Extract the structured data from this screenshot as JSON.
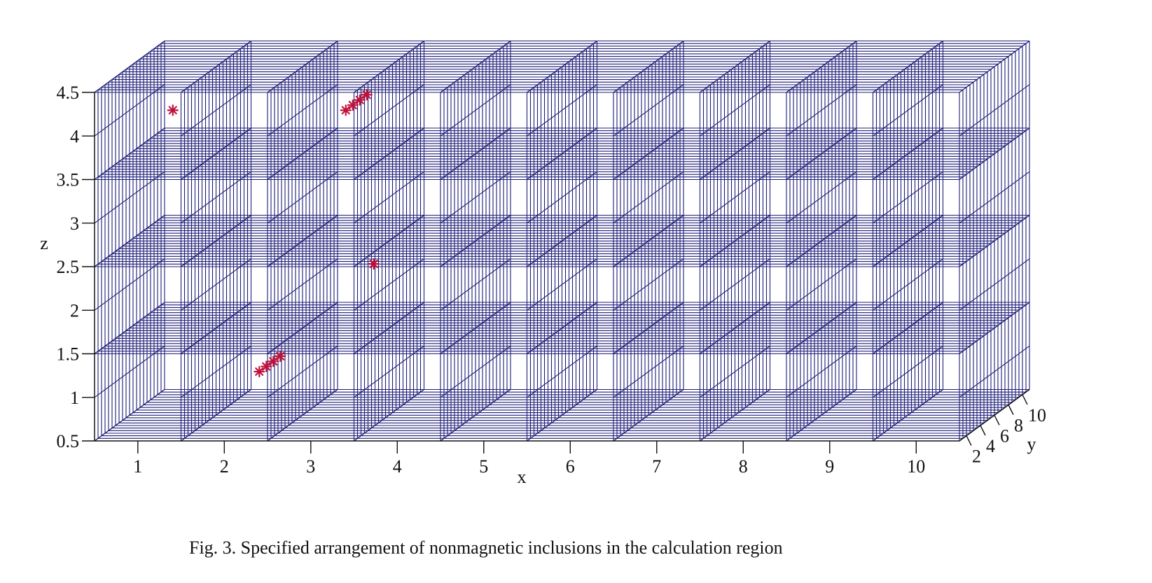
{
  "caption": "Fig. 3. Specified arrangement of nonmagnetic inclusions in the calculation region",
  "colors": {
    "grid": "#1c1c78",
    "marker": "#c0103a",
    "text": "#111111"
  },
  "chart_data": {
    "type": "scatter",
    "projection": "3d-oblique",
    "xlabel": "x",
    "ylabel": "y",
    "zlabel": "z",
    "xlim": [
      0.5,
      10.5
    ],
    "ylim": [
      1,
      11
    ],
    "zlim": [
      0.5,
      4.5
    ],
    "xticks": [
      "1",
      "2",
      "3",
      "4",
      "5",
      "6",
      "7",
      "8",
      "9",
      "10"
    ],
    "yticks": [
      "2",
      "4",
      "6",
      "8",
      "10"
    ],
    "zticks": [
      "0.5",
      "1",
      "1.5",
      "2",
      "2.5",
      "3",
      "3.5",
      "4",
      "4.5"
    ],
    "grid": true,
    "series": [
      {
        "marker": "asterisk",
        "points": [
          {
            "x": 1,
            "y": 6,
            "z": 4
          },
          {
            "x": 3,
            "y": 6,
            "z": 4
          },
          {
            "x": 3,
            "y": 7,
            "z": 4
          },
          {
            "x": 3,
            "y": 8,
            "z": 4
          },
          {
            "x": 3,
            "y": 9,
            "z": 4
          },
          {
            "x": 3,
            "y": 10,
            "z": 2
          },
          {
            "x": 2,
            "y": 6,
            "z": 1
          },
          {
            "x": 2,
            "y": 7,
            "z": 1
          },
          {
            "x": 2,
            "y": 8,
            "z": 1
          },
          {
            "x": 2,
            "y": 9,
            "z": 1
          }
        ]
      }
    ]
  }
}
